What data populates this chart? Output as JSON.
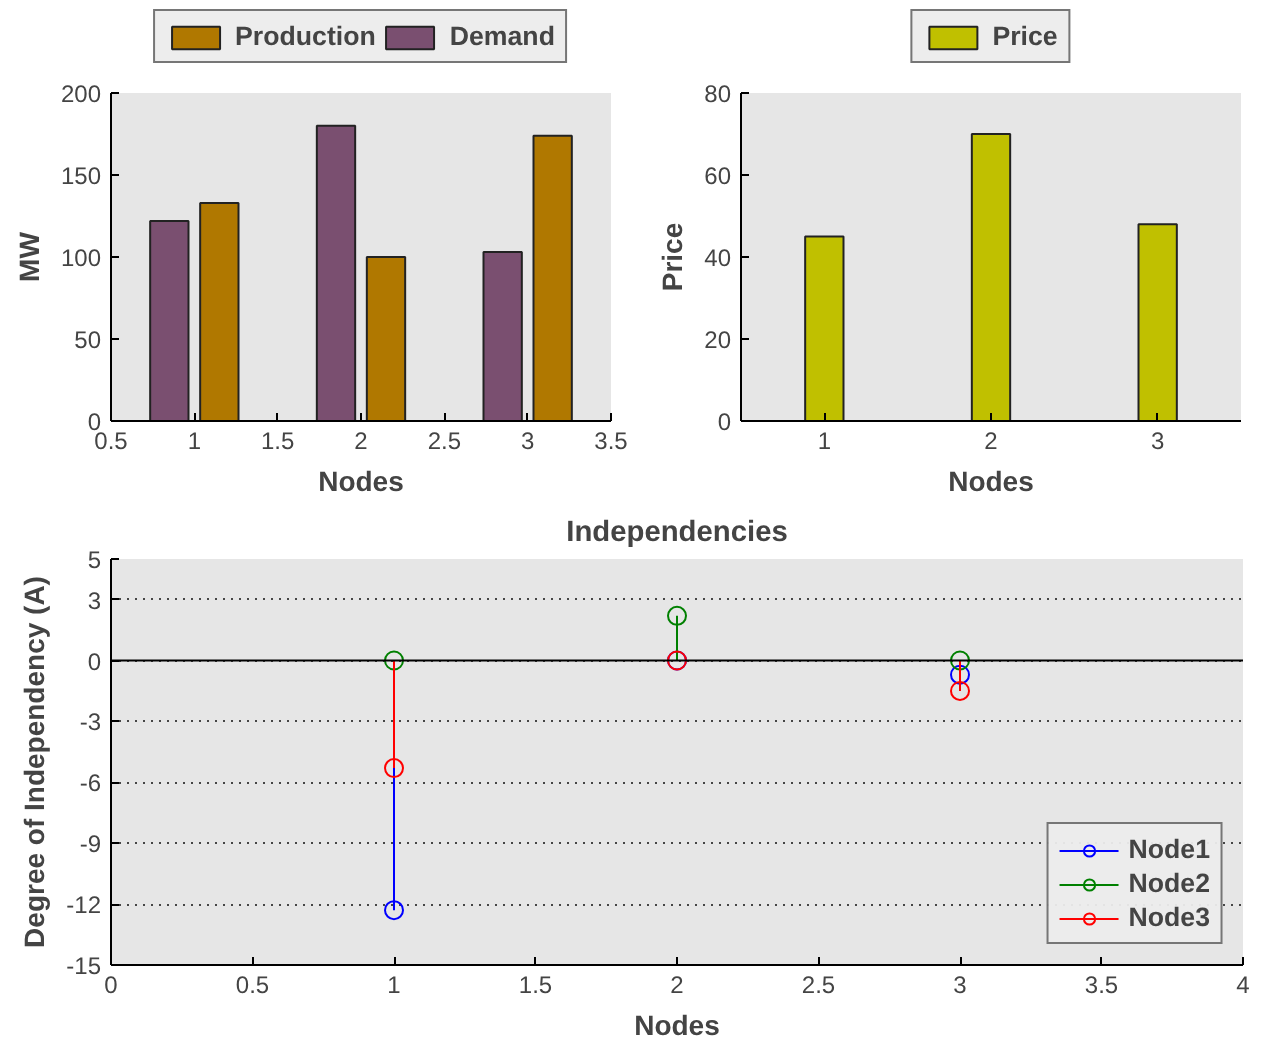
{
  "chart_data": [
    {
      "type": "bar",
      "xlabel": "Nodes",
      "ylabel": "MW",
      "xlim": [
        0.5,
        3.5
      ],
      "xticks": [
        0.5,
        1,
        1.5,
        2,
        2.5,
        3,
        3.5
      ],
      "ylim": [
        0,
        200
      ],
      "yticks": [
        0,
        50,
        100,
        150,
        200
      ],
      "legend": "top",
      "grid": false,
      "series": [
        {
          "name": "Production",
          "color": "#b07800",
          "x": [
            1.15,
            2.15,
            3.15
          ],
          "values": [
            133,
            100,
            174
          ]
        },
        {
          "name": "Demand",
          "color": "#7a4f70",
          "x": [
            0.85,
            1.85,
            2.85
          ],
          "values": [
            122,
            180,
            103
          ]
        }
      ]
    },
    {
      "type": "bar",
      "xlabel": "Nodes",
      "ylabel": "Price",
      "xlim": [
        0.5,
        3.5
      ],
      "xticks": [
        1,
        2,
        3
      ],
      "ylim": [
        0,
        80
      ],
      "yticks": [
        0,
        20,
        40,
        60,
        80
      ],
      "legend": "top",
      "grid": false,
      "series": [
        {
          "name": "Price",
          "color": "#c0c000",
          "x": [
            1,
            2,
            3
          ],
          "values": [
            45,
            70,
            48
          ]
        }
      ]
    },
    {
      "type": "lollipop",
      "title": "Independencies",
      "xlabel": "Nodes",
      "ylabel": "Degree of Independency (A)",
      "xlim": [
        0,
        4
      ],
      "xticks": [
        0,
        0.5,
        1,
        1.5,
        2,
        2.5,
        3,
        3.5,
        4
      ],
      "ylim": [
        -15,
        5
      ],
      "yticks": [
        -15,
        -12,
        -9,
        -6,
        -3,
        0,
        3,
        5
      ],
      "legend": "bottom right",
      "grid": "y",
      "marker": "circle",
      "ref_lines": [
        {
          "axis": "y",
          "value": 0,
          "color": "#000000"
        }
      ],
      "series": [
        {
          "name": "Node1",
          "color": "#0000ff",
          "x": [
            1,
            2,
            3
          ],
          "values": [
            -12.3,
            0,
            -0.7
          ]
        },
        {
          "name": "Node2",
          "color": "#008000",
          "x": [
            1,
            2,
            3
          ],
          "values": [
            0,
            2.2,
            0
          ]
        },
        {
          "name": "Node3",
          "color": "#ff0000",
          "x": [
            1,
            2,
            3
          ],
          "values": [
            -5.3,
            0,
            -1.5
          ]
        }
      ]
    }
  ]
}
